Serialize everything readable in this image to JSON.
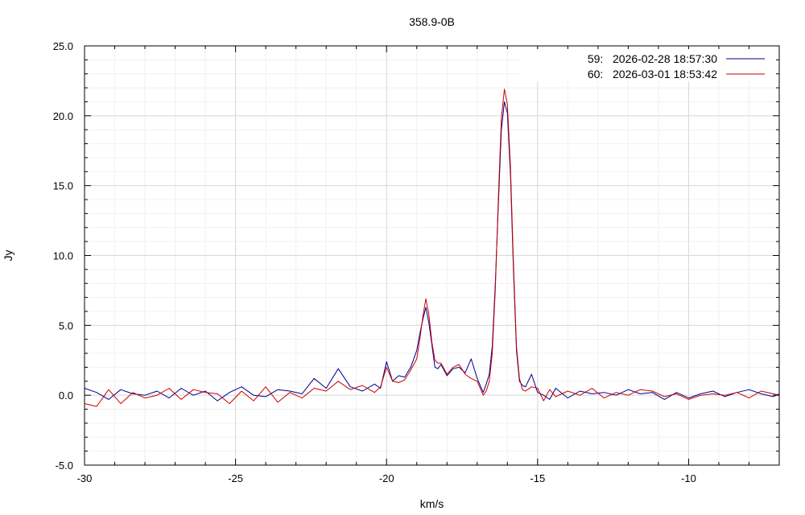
{
  "chart_data": {
    "type": "line",
    "title": "358.9-0B",
    "xlabel": "km/s",
    "ylabel": "Jy",
    "xlim": [
      -30,
      -7
    ],
    "ylim": [
      -5,
      25
    ],
    "grid": true,
    "legend_placement": "top-right",
    "x_ticks": [
      -30,
      -25,
      -20,
      -15,
      -10
    ],
    "x_tick_labels": [
      "-30",
      "-25",
      "-20",
      "-15",
      "-10"
    ],
    "y_ticks": [
      -5,
      0,
      5,
      10,
      15,
      20,
      25
    ],
    "y_tick_labels": [
      "-5.0",
      "0.0",
      "5.0",
      "10.0",
      "15.0",
      "20.0",
      "25.0"
    ],
    "series": [
      {
        "name": "59:   2026-02-28 18:57:30",
        "color": "#00008b",
        "x": [
          -30.0,
          -29.6,
          -29.2,
          -28.8,
          -28.4,
          -28.0,
          -27.6,
          -27.2,
          -26.8,
          -26.4,
          -26.0,
          -25.6,
          -25.2,
          -24.8,
          -24.4,
          -24.0,
          -23.6,
          -23.2,
          -22.8,
          -22.4,
          -22.0,
          -21.6,
          -21.2,
          -20.8,
          -20.4,
          -20.2,
          -20.0,
          -19.8,
          -19.6,
          -19.4,
          -19.2,
          -19.0,
          -18.9,
          -18.8,
          -18.7,
          -18.6,
          -18.5,
          -18.4,
          -18.3,
          -18.2,
          -18.0,
          -17.8,
          -17.6,
          -17.4,
          -17.2,
          -17.0,
          -16.8,
          -16.7,
          -16.6,
          -16.5,
          -16.4,
          -16.3,
          -16.2,
          -16.1,
          -16.0,
          -15.9,
          -15.8,
          -15.7,
          -15.6,
          -15.5,
          -15.4,
          -15.2,
          -15.0,
          -14.8,
          -14.6,
          -14.4,
          -14.0,
          -13.6,
          -13.2,
          -12.8,
          -12.4,
          -12.0,
          -11.6,
          -11.2,
          -10.8,
          -10.4,
          -10.0,
          -9.6,
          -9.2,
          -8.8,
          -8.4,
          -8.0,
          -7.6,
          -7.2,
          -7.0
        ],
        "y": [
          0.5,
          0.2,
          -0.3,
          0.4,
          0.1,
          0.0,
          0.3,
          -0.2,
          0.5,
          0.0,
          0.3,
          -0.4,
          0.2,
          0.6,
          0.0,
          -0.1,
          0.4,
          0.3,
          0.1,
          1.2,
          0.5,
          1.9,
          0.6,
          0.3,
          0.8,
          0.5,
          2.4,
          1.0,
          1.4,
          1.3,
          2.0,
          3.2,
          4.4,
          5.4,
          6.3,
          5.2,
          3.6,
          2.0,
          1.9,
          2.2,
          1.4,
          1.9,
          2.0,
          1.6,
          2.6,
          1.2,
          0.2,
          0.8,
          1.5,
          3.5,
          8.0,
          13.5,
          19.0,
          21.0,
          20.2,
          15.8,
          9.0,
          3.2,
          1.0,
          0.7,
          0.6,
          1.5,
          0.2,
          0.0,
          -0.3,
          0.5,
          -0.2,
          0.3,
          0.1,
          0.2,
          0.0,
          0.4,
          0.1,
          0.2,
          -0.3,
          0.2,
          -0.2,
          0.1,
          0.3,
          -0.1,
          0.2,
          0.4,
          0.1,
          -0.1,
          0.1
        ]
      },
      {
        "name": "60:   2026-03-01 18:53:42",
        "color": "#cc0000",
        "x": [
          -30.0,
          -29.6,
          -29.2,
          -28.8,
          -28.4,
          -28.0,
          -27.6,
          -27.2,
          -26.8,
          -26.4,
          -26.0,
          -25.6,
          -25.2,
          -24.8,
          -24.4,
          -24.0,
          -23.6,
          -23.2,
          -22.8,
          -22.4,
          -22.0,
          -21.6,
          -21.2,
          -20.8,
          -20.4,
          -20.2,
          -20.0,
          -19.8,
          -19.6,
          -19.4,
          -19.2,
          -19.0,
          -18.9,
          -18.8,
          -18.7,
          -18.6,
          -18.5,
          -18.4,
          -18.3,
          -18.2,
          -18.0,
          -17.8,
          -17.6,
          -17.4,
          -17.2,
          -17.0,
          -16.8,
          -16.7,
          -16.6,
          -16.5,
          -16.4,
          -16.3,
          -16.2,
          -16.1,
          -16.0,
          -15.9,
          -15.8,
          -15.7,
          -15.6,
          -15.5,
          -15.4,
          -15.2,
          -15.0,
          -14.8,
          -14.6,
          -14.4,
          -14.0,
          -13.6,
          -13.2,
          -12.8,
          -12.4,
          -12.0,
          -11.6,
          -11.2,
          -10.8,
          -10.4,
          -10.0,
          -9.6,
          -9.2,
          -8.8,
          -8.4,
          -8.0,
          -7.6,
          -7.2,
          -7.0
        ],
        "y": [
          -0.6,
          -0.8,
          0.4,
          -0.6,
          0.2,
          -0.2,
          0.0,
          0.5,
          -0.3,
          0.4,
          0.2,
          0.1,
          -0.6,
          0.3,
          -0.4,
          0.6,
          -0.5,
          0.2,
          -0.2,
          0.5,
          0.3,
          1.0,
          0.4,
          0.7,
          0.2,
          0.6,
          2.0,
          1.0,
          0.9,
          1.1,
          1.8,
          2.6,
          4.0,
          5.6,
          6.9,
          5.8,
          3.8,
          2.5,
          2.3,
          2.3,
          1.5,
          2.0,
          2.2,
          1.5,
          1.2,
          1.0,
          0.0,
          0.3,
          1.0,
          3.0,
          7.6,
          14.0,
          19.8,
          21.9,
          20.8,
          16.4,
          9.5,
          3.5,
          1.2,
          0.4,
          0.3,
          0.6,
          0.5,
          -0.4,
          0.4,
          -0.1,
          0.3,
          0.0,
          0.5,
          -0.2,
          0.2,
          0.0,
          0.4,
          0.3,
          -0.1,
          0.1,
          -0.3,
          0.0,
          0.1,
          0.0,
          0.2,
          -0.2,
          0.3,
          0.1,
          0.0
        ]
      }
    ]
  }
}
